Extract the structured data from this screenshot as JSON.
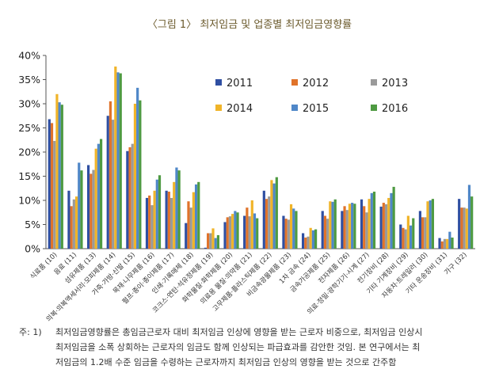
{
  "title": "〈그림 1〉 최저임금 및 업종별 최저임금영향률",
  "chart_data": {
    "type": "bar",
    "title": "〈그림 1〉 최저임금 및 업종별 최저임금영향률",
    "xlabel": "",
    "ylabel": "",
    "ylim": [
      0,
      40
    ],
    "yticks": [
      "0%",
      "5%",
      "10%",
      "15%",
      "20%",
      "25%",
      "30%",
      "35%",
      "40%"
    ],
    "grid": false,
    "legend_position": "top-right",
    "categories": [
      "식료품 (10)",
      "음료 (11)",
      "섬유제품 (13)",
      "의복·의복액세서리·모피제품 (14)",
      "가죽·가방·신발 (15)",
      "목재·나무제품 (16)",
      "펄프·종이·종이제품 (17)",
      "인쇄·기록매체 (18)",
      "코크스·연탄·석유정제품 (19)",
      "화학물질·화학제품 (20)",
      "의료용 물질·의약품 (21)",
      "고무제품·플라스틱제품 (22)",
      "비금속광물제품 (23)",
      "1차 금속 (24)",
      "금속가공제품 (25)",
      "전자제품 (26)",
      "의료·정밀·광학기기·시계 (27)",
      "전기장비 (28)",
      "기타 기계장비 (29)",
      "자동차·트레일러 (30)",
      "기타 운송장비 (31)",
      "가구 (32)"
    ],
    "series": [
      {
        "name": "2011",
        "color": "#2f4fa2",
        "values": [
          26.8,
          12.0,
          17.3,
          27.5,
          20.2,
          10.5,
          12.0,
          5.3,
          0.2,
          5.5,
          6.8,
          12.0,
          6.8,
          3.2,
          7.8,
          7.8,
          10.2,
          8.7,
          5.0,
          7.8,
          2.2,
          10.3
        ]
      },
      {
        "name": "2012",
        "color": "#e0732a",
        "values": [
          26.0,
          8.8,
          15.5,
          30.5,
          21.0,
          11.0,
          11.8,
          9.8,
          3.2,
          6.5,
          8.5,
          10.3,
          6.2,
          2.3,
          6.8,
          8.8,
          8.8,
          9.5,
          4.3,
          6.5,
          1.5,
          8.5
        ]
      },
      {
        "name": "2013",
        "color": "#9a9a9a",
        "values": [
          22.3,
          10.2,
          16.3,
          26.7,
          21.7,
          9.0,
          10.5,
          8.5,
          3.2,
          6.7,
          6.7,
          10.8,
          6.0,
          2.5,
          6.2,
          8.0,
          7.5,
          9.2,
          4.0,
          6.5,
          2.0,
          8.5
        ]
      },
      {
        "name": "2014",
        "color": "#f0b429",
        "values": [
          32.0,
          10.8,
          20.7,
          37.7,
          30.0,
          12.0,
          13.8,
          11.7,
          4.2,
          7.2,
          10.0,
          14.2,
          9.2,
          4.3,
          9.8,
          9.3,
          10.3,
          10.5,
          6.8,
          9.8,
          2.0,
          8.3
        ]
      },
      {
        "name": "2015",
        "color": "#4f87c8",
        "values": [
          30.3,
          17.8,
          21.7,
          36.5,
          33.3,
          14.3,
          16.8,
          13.3,
          2.2,
          7.8,
          7.3,
          13.5,
          8.3,
          3.8,
          9.7,
          9.5,
          11.5,
          11.5,
          4.8,
          10.0,
          3.5,
          13.2
        ]
      },
      {
        "name": "2016",
        "color": "#4e9a42",
        "values": [
          29.8,
          16.2,
          22.7,
          36.3,
          30.7,
          15.2,
          16.2,
          13.8,
          2.8,
          7.5,
          6.3,
          14.8,
          7.8,
          4.0,
          10.2,
          9.3,
          11.8,
          12.8,
          6.3,
          10.3,
          2.3,
          10.8
        ]
      }
    ]
  },
  "note": {
    "label": "주: 1)",
    "lines": [
      "최저임금영향률은 총임금근로자 대비 최저임금 인상에 영향을 받는 근로자 비중으로, 최저임금 인상시",
      "최저임금을 소폭 상회하는 근로자의 임금도 함께 인상되는 파급효과를 감안한 것임. 본 연구에서는 최",
      "저임금의 1.2배 수준 임금을 수령하는 근로자까지 최저임금 인상의 영향을 받는 것으로 간주함"
    ]
  }
}
